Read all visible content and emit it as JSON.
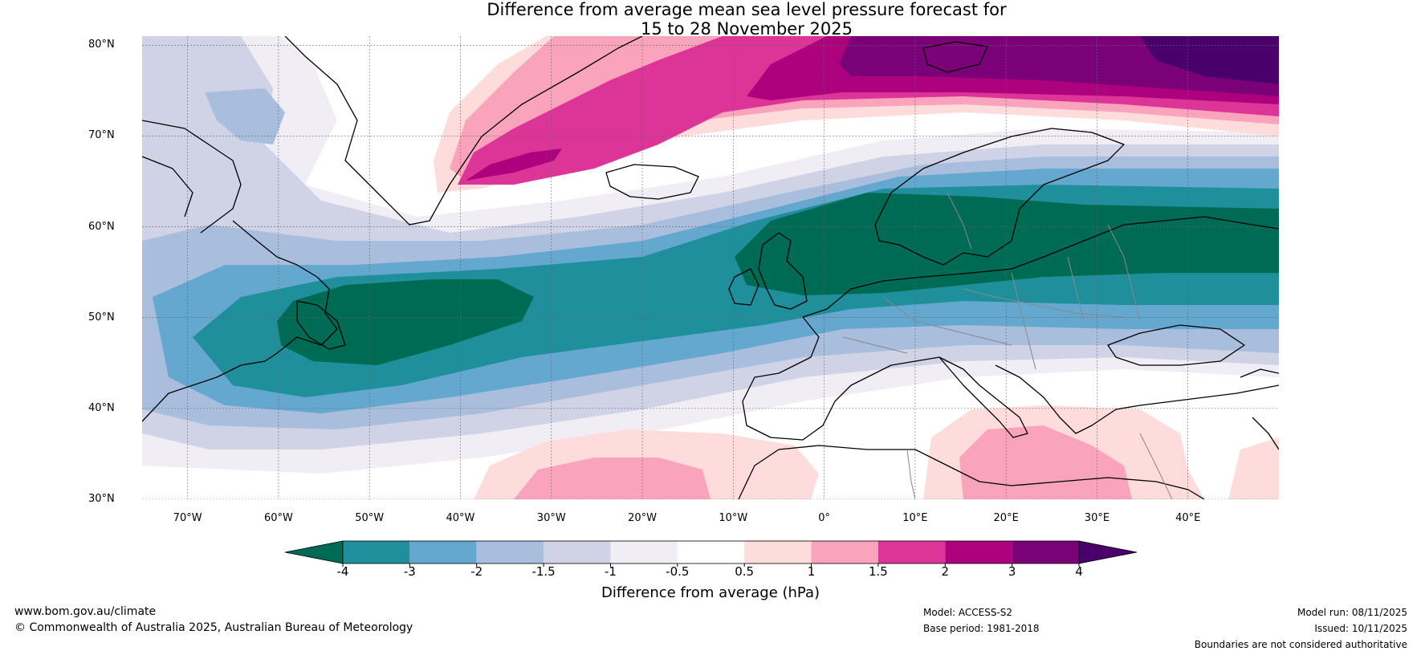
{
  "title": {
    "line1": "Difference from average mean sea level pressure forecast for",
    "line2": "15 to 28 November 2025"
  },
  "map": {
    "extent": {
      "lon_min": -75,
      "lon_max": 50,
      "lat_min": 30,
      "lat_max": 81
    },
    "lat_labels": [
      {
        "lat": 80,
        "text": "80°N"
      },
      {
        "lat": 70,
        "text": "70°N"
      },
      {
        "lat": 60,
        "text": "60°N"
      },
      {
        "lat": 50,
        "text": "50°N"
      },
      {
        "lat": 40,
        "text": "40°N"
      },
      {
        "lat": 30,
        "text": "30°N"
      }
    ],
    "lon_labels": [
      {
        "lon": -70,
        "text": "70°W"
      },
      {
        "lon": -60,
        "text": "60°W"
      },
      {
        "lon": -50,
        "text": "50°W"
      },
      {
        "lon": -40,
        "text": "40°W"
      },
      {
        "lon": -30,
        "text": "30°W"
      },
      {
        "lon": -20,
        "text": "20°W"
      },
      {
        "lon": -10,
        "text": "10°W"
      },
      {
        "lon": 0,
        "text": "0°"
      },
      {
        "lon": 10,
        "text": "10°E"
      },
      {
        "lon": 20,
        "text": "20°E"
      },
      {
        "lon": 30,
        "text": "30°E"
      },
      {
        "lon": 40,
        "text": "40°E"
      }
    ],
    "anomaly_centres": [
      {
        "name": "Labrador Sea to mid-Atlantic low",
        "lon": -45,
        "lat": 51,
        "value": "< -4"
      },
      {
        "name": "North Sea / Scandinavia low",
        "lon": 5,
        "lat": 58,
        "value": "< -4"
      },
      {
        "name": "Barents Sea high",
        "lon": 30,
        "lat": 79,
        "value": "> 4"
      },
      {
        "name": "Denmark Strait high",
        "lon": -35,
        "lat": 68,
        "value": "3"
      },
      {
        "name": "Eastern Mediterranean high",
        "lon": 23,
        "lat": 34,
        "value": "1"
      },
      {
        "name": "Subtropical Atlantic high",
        "lon": -25,
        "lat": 32,
        "value": "1"
      }
    ]
  },
  "colorbar": {
    "label": "Difference from average (hPa)",
    "ticks": [
      "-4",
      "-3",
      "-2",
      "-1.5",
      "-1",
      "-0.5",
      "0.5",
      "1",
      "1.5",
      "2",
      "3",
      "4"
    ],
    "colors": [
      "#006b55",
      "#1f8f9b",
      "#64a8cf",
      "#a9bedd",
      "#d0d2e6",
      "#f1edf5",
      "#ffffff",
      "#fedcdc",
      "#f9a3bc",
      "#dd3497",
      "#ae017e",
      "#7a0177",
      "#49006a"
    ]
  },
  "footer": {
    "website": "www.bom.gov.au/climate",
    "copyright": "© Commonwealth of Australia 2025, Australian Bureau of Meteorology",
    "model": "Model: ACCESS-S2",
    "base_period": "Base period: 1981-2018",
    "model_run": "Model run: 08/11/2025",
    "issued": "Issued: 10/11/2025",
    "disclaimer": "Boundaries are not considered authoritative"
  }
}
